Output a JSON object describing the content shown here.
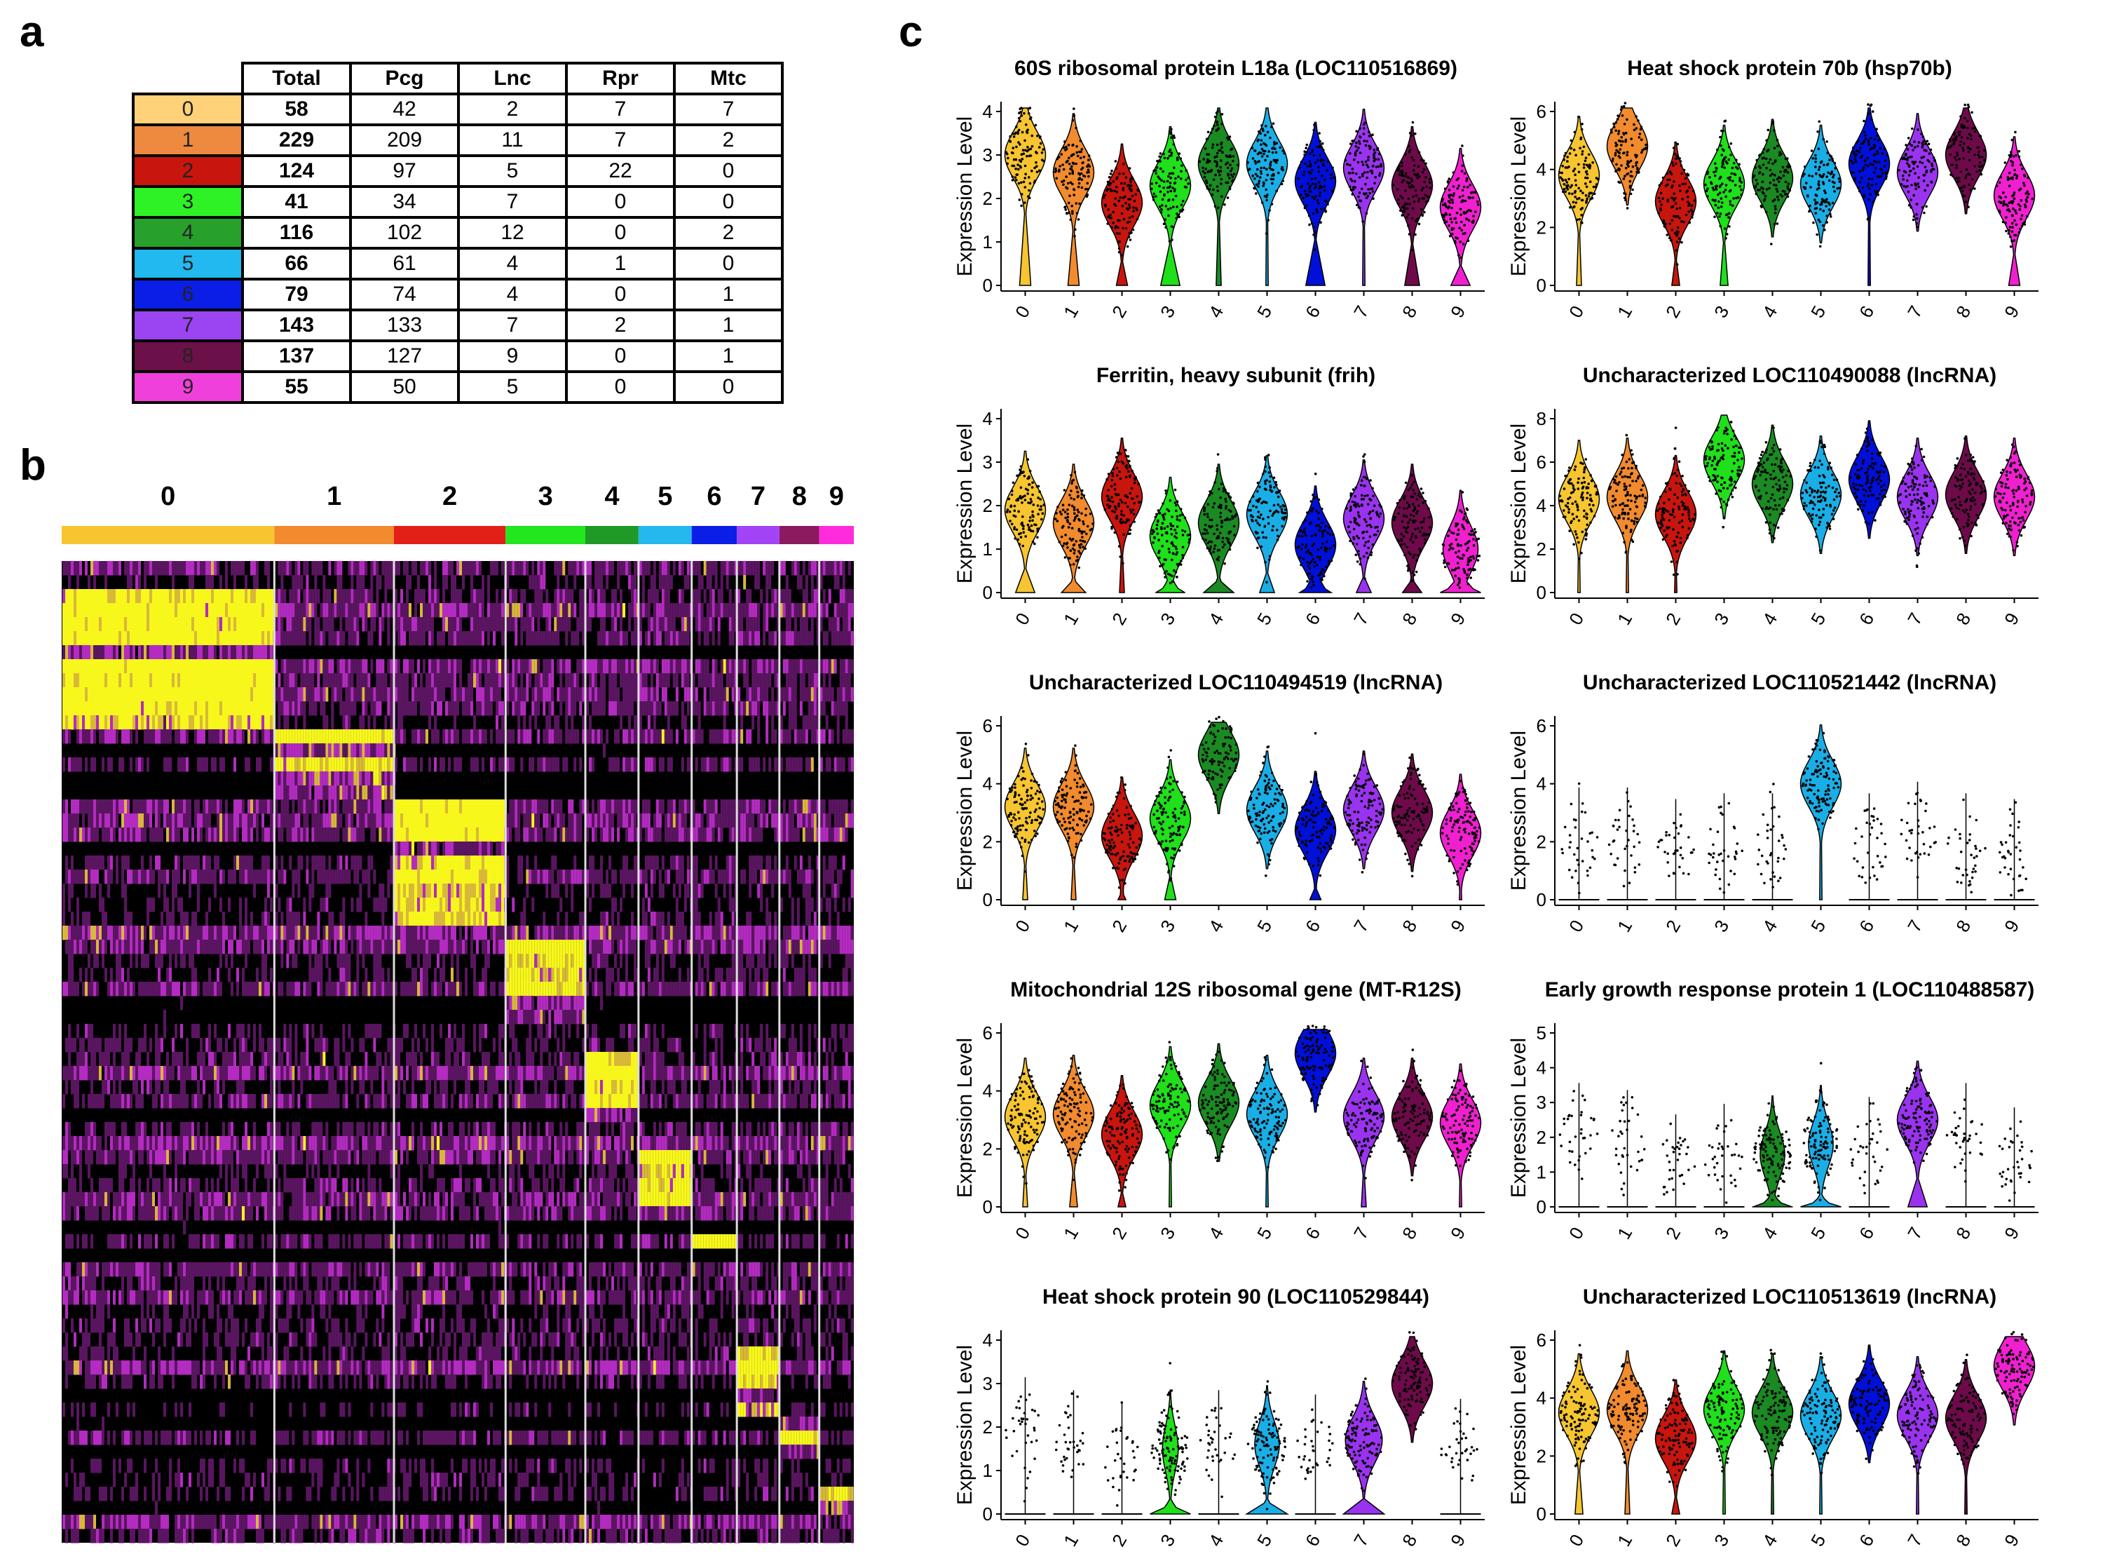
{
  "panels": {
    "a": "a",
    "b": "b",
    "c": "c"
  },
  "colors": {
    "cluster": [
      "#f7c530",
      "#f28a2e",
      "#e32018",
      "#22e61e",
      "#1f9a26",
      "#25b8ee",
      "#0a1ee6",
      "#a243f5",
      "#8b1a5f",
      "#ff2bdc"
    ],
    "cluster_dark": [
      "#f7c530",
      "#f28a2e",
      "#c8150e",
      "#1fe01a",
      "#1a8a22",
      "#1aaee6",
      "#0010d8",
      "#9a33ef",
      "#6e0a4a",
      "#f020d0"
    ],
    "table_cluster": [
      "#ffd27a",
      "#ee8a40",
      "#c8150e",
      "#2ef226",
      "#27a02c",
      "#22b8f0",
      "#0a1ee6",
      "#9a44f2",
      "#6b1048",
      "#f040dc"
    ]
  },
  "table": {
    "headers": [
      "Total",
      "Pcg",
      "Lnc",
      "Rpr",
      "Mtc"
    ],
    "rows": [
      {
        "cluster": "0",
        "total": "58",
        "pcg": "42",
        "lnc": "2",
        "rpr": "7",
        "mtc": "7"
      },
      {
        "cluster": "1",
        "total": "229",
        "pcg": "209",
        "lnc": "11",
        "rpr": "7",
        "mtc": "2"
      },
      {
        "cluster": "2",
        "total": "124",
        "pcg": "97",
        "lnc": "5",
        "rpr": "22",
        "mtc": "0"
      },
      {
        "cluster": "3",
        "total": "41",
        "pcg": "34",
        "lnc": "7",
        "rpr": "0",
        "mtc": "0"
      },
      {
        "cluster": "4",
        "total": "116",
        "pcg": "102",
        "lnc": "12",
        "rpr": "0",
        "mtc": "2"
      },
      {
        "cluster": "5",
        "total": "66",
        "pcg": "61",
        "lnc": "4",
        "rpr": "1",
        "mtc": "0"
      },
      {
        "cluster": "6",
        "total": "79",
        "pcg": "74",
        "lnc": "4",
        "rpr": "0",
        "mtc": "1"
      },
      {
        "cluster": "7",
        "total": "143",
        "pcg": "133",
        "lnc": "7",
        "rpr": "2",
        "mtc": "1"
      },
      {
        "cluster": "8",
        "total": "137",
        "pcg": "127",
        "lnc": "9",
        "rpr": "0",
        "mtc": "1"
      },
      {
        "cluster": "9",
        "total": "55",
        "pcg": "50",
        "lnc": "5",
        "rpr": "0",
        "mtc": "0"
      }
    ]
  },
  "chart_data": [
    {
      "type": "heatmap",
      "panel": "b",
      "clusters": [
        "0",
        "1",
        "2",
        "3",
        "4",
        "5",
        "6",
        "7",
        "8",
        "9"
      ],
      "relative_cluster_widths": [
        8,
        4.5,
        4.2,
        3,
        2,
        2,
        1.7,
        1.6,
        1.5,
        1.3
      ],
      "marker_gene_blocks": [
        [
          0,
          0.02,
          0.17
        ],
        [
          1,
          0.17,
          0.24
        ],
        [
          2,
          0.24,
          0.36
        ],
        [
          3,
          0.38,
          0.47
        ],
        [
          4,
          0.49,
          0.56
        ],
        [
          5,
          0.59,
          0.65
        ],
        [
          6,
          0.675,
          0.7
        ],
        [
          7,
          0.8,
          0.86
        ],
        [
          8,
          0.87,
          0.91
        ],
        [
          9,
          0.93,
          0.965
        ]
      ]
    },
    {
      "type": "violin",
      "panel": "c",
      "xlabel_ticks": [
        "0",
        "1",
        "2",
        "3",
        "4",
        "5",
        "6",
        "7",
        "8",
        "9"
      ],
      "ylabel": "Expression Level",
      "plots": [
        {
          "title": "60S ribosomal protein L18a (LOC110516869)",
          "ymax": 4,
          "yticks": [
            "0",
            "1",
            "2",
            "3",
            "4"
          ],
          "medians": [
            3,
            2.6,
            1.9,
            2.3,
            2.8,
            2.8,
            2.4,
            2.7,
            2.3,
            1.8
          ],
          "zero_frac": [
            0.2,
            0.2,
            0.2,
            0.3,
            0.1,
            0.05,
            0.3,
            0.05,
            0.25,
            0.3
          ]
        },
        {
          "title": "Heat shock protein 70b (hsp70b)",
          "ymax": 6,
          "yticks": [
            "0",
            "2",
            "4",
            "6"
          ],
          "medians": [
            3.8,
            4.8,
            2.9,
            3.5,
            3.7,
            3.5,
            4.2,
            3.9,
            4.5,
            3.1
          ],
          "zero_frac": [
            0.1,
            0,
            0.15,
            0.15,
            0,
            0,
            0.05,
            0,
            0,
            0.2
          ]
        },
        {
          "title": "Ferritin, heavy subunit (frih)",
          "ymax": 4,
          "yticks": [
            "0",
            "1",
            "2",
            "3",
            "4"
          ],
          "medians": [
            1.9,
            1.6,
            2.2,
            1.3,
            1.6,
            1.8,
            1.1,
            1.7,
            1.6,
            1.0
          ],
          "zero_frac": [
            0.3,
            0.35,
            0.1,
            0.4,
            0.4,
            0.25,
            0.4,
            0.25,
            0.3,
            0.5
          ]
        },
        {
          "title": "Uncharacterized LOC110490088 (lncRNA)",
          "ymax": 8,
          "yticks": [
            "0",
            "2",
            "4",
            "6",
            "8"
          ],
          "medians": [
            4.3,
            4.4,
            3.6,
            6.1,
            5.0,
            4.5,
            5.2,
            4.4,
            4.5,
            4.4
          ],
          "zero_frac": [
            0.05,
            0.05,
            0.05,
            0,
            0,
            0,
            0,
            0,
            0,
            0
          ]
        },
        {
          "title": "Uncharacterized LOC110494519 (lncRNA)",
          "ymax": 6,
          "yticks": [
            "0",
            "2",
            "4",
            "6"
          ],
          "medians": [
            3.2,
            3.2,
            2.2,
            2.8,
            5.0,
            3.1,
            2.4,
            3.1,
            3.0,
            2.3
          ],
          "zero_frac": [
            0.1,
            0.1,
            0.15,
            0.2,
            0,
            0,
            0.2,
            0,
            0,
            0.05
          ]
        },
        {
          "title": "Uncharacterized LOC110521442 (lncRNA)",
          "ymax": 6,
          "yticks": [
            "0",
            "2",
            "4",
            "6"
          ],
          "medians": [
            2,
            2,
            1.6,
            1.8,
            1.8,
            4.0,
            1.8,
            2.2,
            1.8,
            1.6
          ],
          "zero_frac": [
            0.9,
            0.9,
            0.9,
            0.93,
            0.93,
            0.05,
            0.95,
            0.93,
            0.96,
            0.96
          ]
        },
        {
          "title": "Mitochondrial 12S ribosomal gene (MT-R12S)",
          "ymax": 6,
          "yticks": [
            "0",
            "2",
            "4",
            "6"
          ],
          "medians": [
            3.1,
            3.2,
            2.5,
            3.5,
            3.6,
            3.2,
            5.3,
            3.1,
            3.1,
            2.9
          ],
          "zero_frac": [
            0.1,
            0.15,
            0.15,
            0.05,
            0,
            0.05,
            0,
            0.1,
            0,
            0.05
          ]
        },
        {
          "title": "Early growth response protein 1 (LOC110488587)",
          "ymax": 5,
          "yticks": [
            "0",
            "1",
            "2",
            "3",
            "4",
            "5"
          ],
          "medians": [
            2,
            1.8,
            1.1,
            1.4,
            1.5,
            1.8,
            1.6,
            2.5,
            2,
            1.3
          ],
          "zero_frac": [
            0.9,
            0.9,
            0.92,
            0.92,
            0.6,
            0.6,
            0.95,
            0.3,
            0.97,
            0.97
          ]
        },
        {
          "title": "Heat shock protein 90 (LOC110529844)",
          "ymax": 4,
          "yticks": [
            "0",
            "1",
            "2",
            "3",
            "4"
          ],
          "medians": [
            1.9,
            1.6,
            1.3,
            1.5,
            1.6,
            1.6,
            1.5,
            1.7,
            3.0,
            1.4
          ],
          "zero_frac": [
            0.85,
            0.88,
            0.9,
            0.7,
            0.85,
            0.6,
            0.9,
            0.5,
            0.02,
            0.9
          ]
        },
        {
          "title": "Uncharacterized LOC110513619  (lncRNA)",
          "ymax": 6,
          "yticks": [
            "0",
            "2",
            "4",
            "6"
          ],
          "medians": [
            3.5,
            3.6,
            2.6,
            3.6,
            3.5,
            3.4,
            3.8,
            3.4,
            3.3,
            5.1
          ],
          "zero_frac": [
            0.15,
            0.1,
            0.15,
            0.05,
            0.05,
            0.05,
            0,
            0.05,
            0.05,
            0
          ]
        }
      ]
    }
  ]
}
